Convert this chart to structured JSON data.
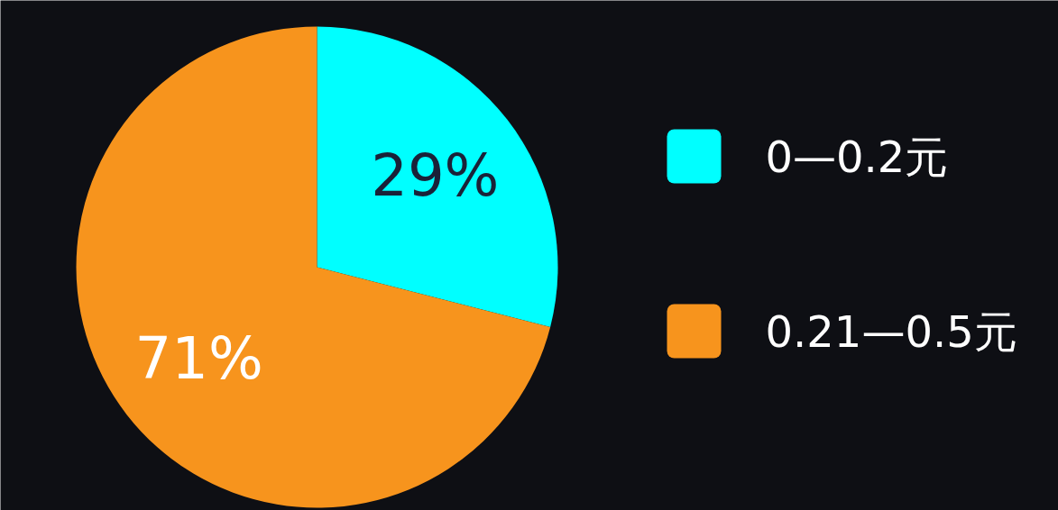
{
  "chart_data": {
    "type": "pie",
    "categories": [
      "0—0.2元",
      "0.21—0.5元"
    ],
    "values": [
      29,
      71
    ],
    "colors": [
      "#00ffff",
      "#f7941d"
    ],
    "value_labels": [
      "29%",
      "71%"
    ],
    "legend": "right"
  }
}
